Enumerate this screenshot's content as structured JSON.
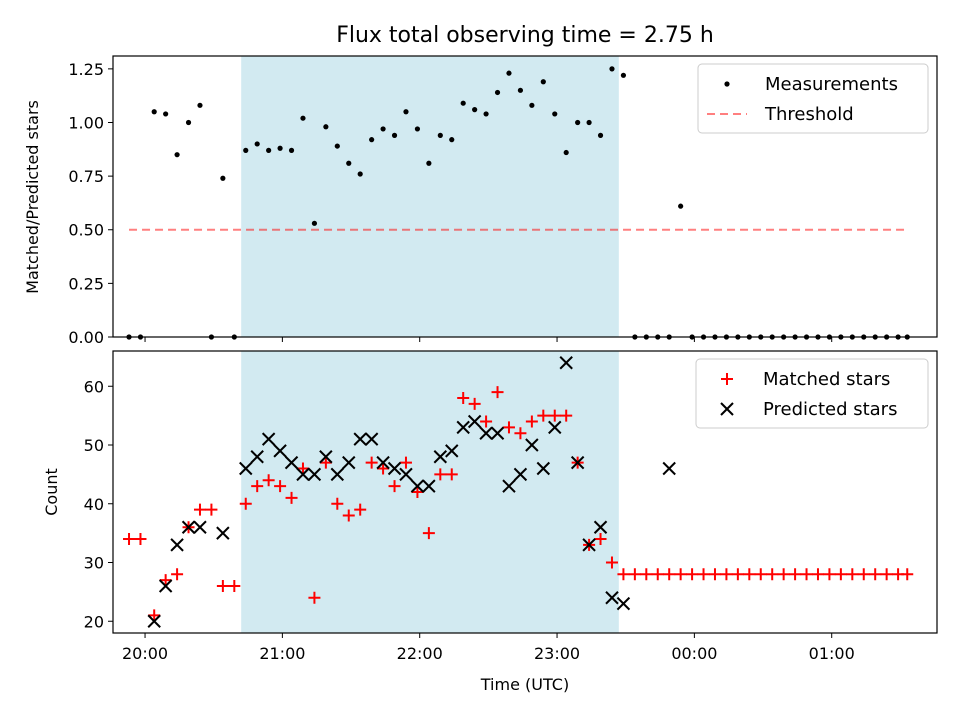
{
  "chart_data": [
    {
      "type": "scatter",
      "title": "Flux total observing time = 2.75 h",
      "xlabel": "",
      "ylabel": "Matched/Predicted stars",
      "xlim": [
        "19:46",
        "01:46"
      ],
      "ylim": [
        0.0,
        1.31
      ],
      "yticks": [
        "0.00",
        "0.25",
        "0.50",
        "0.75",
        "1.00",
        "1.25"
      ],
      "ytick_values": [
        0,
        0.25,
        0.5,
        0.75,
        1.0,
        1.25
      ],
      "shaded_interval": {
        "start": "20:42",
        "end": "23:27",
        "color": "#add8e6"
      },
      "threshold": {
        "name": "Threshold",
        "value": 0.5,
        "x_start": "19:53",
        "x_end": "01:33",
        "color": "#ff0000"
      },
      "legend": {
        "placement": "top-right",
        "entries": [
          "Measurements",
          "Threshold"
        ]
      },
      "series": [
        {
          "name": "Measurements",
          "color": "#000000",
          "x": [
            "19:53",
            "19:58",
            "20:04",
            "20:09",
            "20:14",
            "20:19",
            "20:24",
            "20:29",
            "20:34",
            "20:39",
            "20:44",
            "20:49",
            "20:54",
            "20:59",
            "21:04",
            "21:09",
            "21:14",
            "21:19",
            "21:24",
            "21:29",
            "21:34",
            "21:39",
            "21:44",
            "21:49",
            "21:54",
            "21:59",
            "22:04",
            "22:09",
            "22:14",
            "22:19",
            "22:24",
            "22:29",
            "22:34",
            "22:39",
            "22:44",
            "22:49",
            "22:54",
            "22:59",
            "23:04",
            "23:09",
            "23:14",
            "23:19",
            "23:24",
            "23:29",
            "23:34",
            "23:39",
            "23:44",
            "23:49",
            "23:54",
            "23:59",
            "00:04",
            "00:09",
            "00:14",
            "00:19",
            "00:24",
            "00:29",
            "00:34",
            "00:39",
            "00:44",
            "00:49",
            "00:54",
            "00:59",
            "01:04",
            "01:09",
            "01:14",
            "01:19",
            "01:24",
            "01:29",
            "01:33"
          ],
          "values": [
            0,
            0,
            1.05,
            1.04,
            0.85,
            1.0,
            1.08,
            0,
            0.74,
            0,
            0.87,
            0.9,
            0.87,
            0.88,
            0.87,
            1.02,
            0.53,
            0.98,
            0.89,
            0.81,
            0.76,
            0.92,
            0.97,
            0.94,
            1.05,
            0.97,
            0.81,
            0.94,
            0.92,
            1.09,
            1.06,
            1.04,
            1.14,
            1.23,
            1.15,
            1.08,
            1.19,
            1.04,
            0.86,
            1.0,
            1.0,
            0.94,
            1.25,
            1.22,
            0,
            0,
            0,
            0,
            0.61,
            0,
            0,
            0,
            0,
            0,
            0,
            0,
            0,
            0,
            0,
            0,
            0,
            0,
            0,
            0,
            0,
            0,
            0,
            0,
            0
          ]
        }
      ]
    },
    {
      "type": "scatter",
      "title": "",
      "xlabel": "Time (UTC)",
      "ylabel": "Count",
      "xlim": [
        "19:46",
        "01:46"
      ],
      "ylim": [
        18,
        66
      ],
      "xticks": [
        "20:00",
        "21:00",
        "22:00",
        "23:00",
        "00:00",
        "01:00"
      ],
      "yticks": [
        "20",
        "30",
        "40",
        "50",
        "60"
      ],
      "ytick_values": [
        20,
        30,
        40,
        50,
        60
      ],
      "shaded_interval": {
        "start": "20:42",
        "end": "23:27",
        "color": "#add8e6"
      },
      "legend": {
        "placement": "top-right",
        "entries": [
          "Matched stars",
          "Predicted stars"
        ]
      },
      "series": [
        {
          "name": "Matched stars",
          "marker": "plus",
          "color": "#ff0000",
          "x": [
            "19:53",
            "19:58",
            "20:04",
            "20:09",
            "20:14",
            "20:19",
            "20:24",
            "20:29",
            "20:34",
            "20:39",
            "20:44",
            "20:49",
            "20:54",
            "20:59",
            "21:04",
            "21:09",
            "21:14",
            "21:19",
            "21:24",
            "21:29",
            "21:34",
            "21:39",
            "21:44",
            "21:49",
            "21:54",
            "21:59",
            "22:04",
            "22:09",
            "22:14",
            "22:19",
            "22:24",
            "22:29",
            "22:34",
            "22:39",
            "22:44",
            "22:49",
            "22:54",
            "22:59",
            "23:04",
            "23:09",
            "23:14",
            "23:19",
            "23:24",
            "23:29",
            "23:34",
            "23:39",
            "23:44",
            "23:49",
            "23:54",
            "23:59",
            "00:04",
            "00:09",
            "00:14",
            "00:19",
            "00:24",
            "00:29",
            "00:34",
            "00:39",
            "00:44",
            "00:49",
            "00:54",
            "00:59",
            "01:04",
            "01:09",
            "01:14",
            "01:19",
            "01:24",
            "01:29",
            "01:33"
          ],
          "values": [
            34,
            34,
            21,
            27,
            28,
            36,
            39,
            39,
            26,
            26,
            40,
            43,
            44,
            43,
            41,
            46,
            24,
            47,
            40,
            38,
            39,
            47,
            46,
            43,
            47,
            42,
            35,
            45,
            45,
            58,
            57,
            54,
            59,
            53,
            52,
            54,
            55,
            55,
            55,
            47,
            33,
            34,
            30,
            28,
            28,
            28,
            28,
            28,
            28,
            28,
            28,
            28,
            28,
            28,
            28,
            28,
            28,
            28,
            28,
            28,
            28,
            28,
            28,
            28,
            28,
            28,
            28,
            28,
            28
          ]
        },
        {
          "name": "Predicted stars",
          "marker": "x",
          "color": "#000000",
          "x": [
            "20:04",
            "20:09",
            "20:14",
            "20:19",
            "20:24",
            "20:34",
            "20:44",
            "20:49",
            "20:54",
            "20:59",
            "21:04",
            "21:09",
            "21:14",
            "21:19",
            "21:24",
            "21:29",
            "21:34",
            "21:39",
            "21:44",
            "21:49",
            "21:54",
            "21:59",
            "22:04",
            "22:09",
            "22:14",
            "22:19",
            "22:24",
            "22:29",
            "22:34",
            "22:39",
            "22:44",
            "22:49",
            "22:54",
            "22:59",
            "23:04",
            "23:09",
            "23:14",
            "23:19",
            "23:24",
            "23:29",
            "23:49"
          ],
          "values": [
            20,
            26,
            33,
            36,
            36,
            35,
            46,
            48,
            51,
            49,
            47,
            45,
            45,
            48,
            45,
            47,
            51,
            51,
            47,
            46,
            45,
            43,
            43,
            48,
            49,
            53,
            54,
            52,
            52,
            43,
            45,
            50,
            46,
            53,
            64,
            47,
            33,
            36,
            24,
            23,
            46
          ]
        }
      ]
    }
  ]
}
